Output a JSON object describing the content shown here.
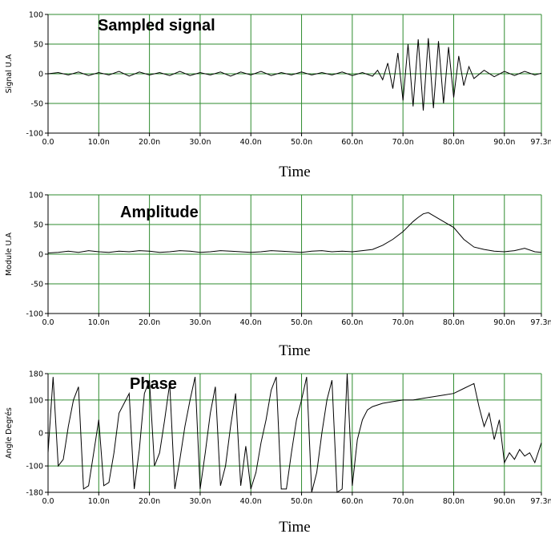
{
  "chart_data": [
    {
      "type": "line",
      "title": "Sampled signal",
      "xlabel": "Time",
      "ylabel": "Signal U.A",
      "xlim": [
        0,
        97.3
      ],
      "ylim": [
        -100,
        100
      ],
      "x_ticks": [
        "0.0",
        "10.0n",
        "20.0n",
        "30.0n",
        "40.0n",
        "50.0n",
        "60.0n",
        "70.0n",
        "80.0n",
        "90.0n",
        "97.3n"
      ],
      "y_ticks": [
        "100",
        "50",
        "0",
        "-50",
        "-100"
      ],
      "grid": true,
      "series": [
        {
          "x": [
            0,
            2,
            4,
            6,
            8,
            10,
            12,
            14,
            16,
            18,
            20,
            22,
            24,
            26,
            28,
            30,
            32,
            34,
            36,
            38,
            40,
            42,
            44,
            46,
            48,
            50,
            52,
            54,
            56,
            58,
            60,
            62,
            64,
            65,
            66,
            67,
            68,
            69,
            70,
            71,
            72,
            73,
            74,
            75,
            76,
            77,
            78,
            79,
            80,
            81,
            82,
            83,
            84,
            86,
            88,
            90,
            92,
            94,
            96,
            97.3
          ],
          "values": [
            0,
            2,
            -2,
            3,
            -3,
            2,
            -2,
            4,
            -4,
            3,
            -2,
            2,
            -3,
            4,
            -3,
            2,
            -2,
            3,
            -4,
            3,
            -2,
            4,
            -3,
            2,
            -2,
            3,
            -2,
            2,
            -2,
            3,
            -3,
            2,
            -4,
            6,
            -10,
            18,
            -25,
            35,
            -45,
            50,
            -55,
            58,
            -62,
            60,
            -58,
            55,
            -50,
            45,
            -40,
            30,
            -20,
            12,
            -8,
            6,
            -5,
            4,
            -3,
            4,
            -2,
            1
          ]
        }
      ]
    },
    {
      "type": "line",
      "title": "Amplitude",
      "xlabel": "Time",
      "ylabel": "Module U.A",
      "xlim": [
        0,
        97.3
      ],
      "ylim": [
        -100,
        100
      ],
      "x_ticks": [
        "0.0",
        "10.0n",
        "20.0n",
        "30.0n",
        "40.0n",
        "50.0n",
        "60.0n",
        "70.0n",
        "80.0n",
        "90.0n",
        "97.3n"
      ],
      "y_ticks": [
        "100",
        "50",
        "0",
        "-50",
        "-100"
      ],
      "grid": true,
      "series": [
        {
          "x": [
            0,
            2,
            4,
            6,
            8,
            10,
            12,
            14,
            16,
            18,
            20,
            22,
            24,
            26,
            28,
            30,
            32,
            34,
            36,
            38,
            40,
            42,
            44,
            46,
            48,
            50,
            52,
            54,
            56,
            58,
            60,
            62,
            64,
            66,
            68,
            70,
            72,
            73,
            74,
            75,
            76,
            78,
            80,
            82,
            84,
            86,
            88,
            90,
            92,
            94,
            96,
            97.3
          ],
          "values": [
            2,
            3,
            5,
            3,
            6,
            4,
            3,
            5,
            4,
            6,
            5,
            3,
            4,
            6,
            5,
            3,
            4,
            6,
            5,
            4,
            3,
            4,
            6,
            5,
            4,
            3,
            5,
            6,
            4,
            5,
            4,
            6,
            8,
            15,
            25,
            38,
            55,
            62,
            68,
            70,
            65,
            55,
            45,
            25,
            12,
            8,
            5,
            4,
            6,
            10,
            4,
            3
          ]
        }
      ]
    },
    {
      "type": "line",
      "title": "Phase",
      "xlabel": "Time",
      "ylabel": "Angle Degrés",
      "xlim": [
        0,
        97.3
      ],
      "ylim": [
        -180,
        180
      ],
      "x_ticks": [
        "0.0",
        "10.0n",
        "20.0n",
        "30.0n",
        "40.0n",
        "50.0n",
        "60.0n",
        "70.0n",
        "80.0n",
        "90.0n",
        "97.3n"
      ],
      "y_ticks": [
        "180",
        "100",
        "0",
        "-100",
        "-180"
      ],
      "grid": true,
      "series": [
        {
          "x": [
            0,
            1,
            2,
            3,
            4,
            5,
            6,
            7,
            8,
            9,
            10,
            11,
            12,
            13,
            14,
            15,
            16,
            17,
            18,
            19,
            20,
            21,
            22,
            23,
            24,
            25,
            26,
            27,
            28,
            29,
            30,
            31,
            32,
            33,
            34,
            35,
            36,
            37,
            38,
            39,
            40,
            41,
            42,
            43,
            44,
            45,
            46,
            47,
            48,
            49,
            50,
            51,
            52,
            53,
            54,
            55,
            56,
            57,
            58,
            59,
            60,
            61,
            62,
            63,
            64,
            66,
            68,
            70,
            72,
            74,
            76,
            78,
            80,
            82,
            84,
            85,
            86,
            87,
            88,
            89,
            90,
            91,
            92,
            93,
            94,
            95,
            96,
            97.3
          ],
          "values": [
            -60,
            170,
            -100,
            -80,
            20,
            100,
            140,
            -170,
            -160,
            -60,
            40,
            -160,
            -150,
            -60,
            60,
            90,
            120,
            -170,
            -50,
            120,
            160,
            -100,
            -60,
            40,
            150,
            -170,
            -80,
            20,
            100,
            170,
            -170,
            -60,
            60,
            140,
            -160,
            -100,
            20,
            120,
            -160,
            -40,
            -170,
            -120,
            -30,
            40,
            130,
            170,
            -170,
            -170,
            -60,
            40,
            100,
            170,
            -180,
            -120,
            0,
            100,
            160,
            -180,
            -170,
            180,
            -160,
            -20,
            40,
            70,
            80,
            90,
            95,
            100,
            100,
            105,
            110,
            115,
            120,
            135,
            150,
            80,
            20,
            60,
            -20,
            40,
            -90,
            -60,
            -80,
            -50,
            -70,
            -60,
            -90,
            -30
          ]
        }
      ]
    }
  ]
}
